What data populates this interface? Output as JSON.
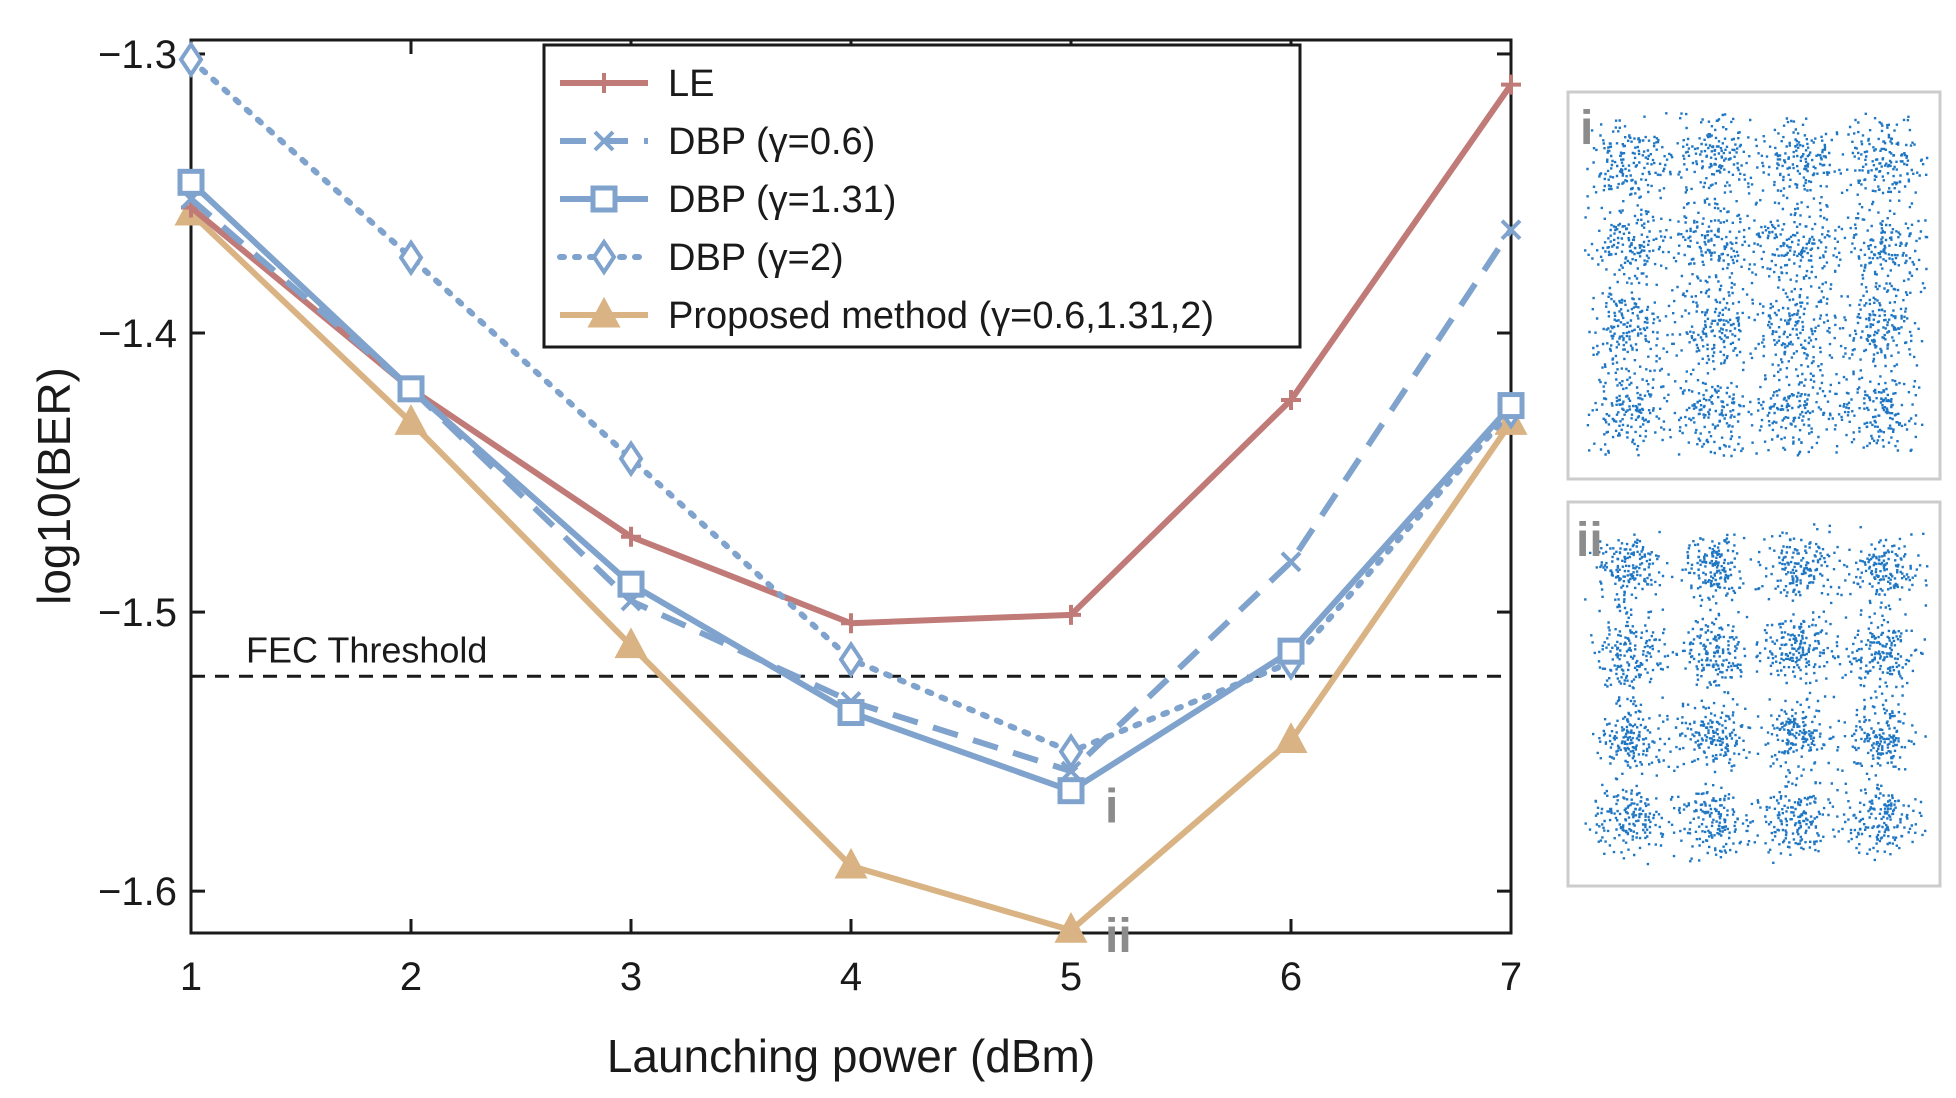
{
  "chart_data": {
    "type": "line",
    "xlabel": "Launching power (dBm)",
    "ylabel": "log10(BER)",
    "x": [
      1,
      2,
      3,
      4,
      5,
      6,
      7
    ],
    "xlim": [
      1,
      7
    ],
    "ylim": [
      -1.615,
      -1.295
    ],
    "yticks": [
      -1.3,
      -1.4,
      -1.5,
      -1.6
    ],
    "ytick_labels": [
      "−1.3",
      "−1.4",
      "−1.5",
      "−1.6"
    ],
    "xtick_labels": [
      "1",
      "2",
      "3",
      "4",
      "5",
      "6",
      "7"
    ],
    "series": [
      {
        "name": "LE",
        "color": "#c07b78",
        "dash": "solid",
        "marker": "plus",
        "values": [
          -1.355,
          -1.42,
          -1.473,
          -1.504,
          -1.501,
          -1.424,
          -1.311
        ]
      },
      {
        "name": "DBP (γ=0.6)",
        "color": "#7fa3cc",
        "dash": "dashed",
        "marker": "x",
        "values": [
          -1.352,
          -1.42,
          -1.496,
          -1.532,
          -1.557,
          -1.482,
          -1.363
        ]
      },
      {
        "name": "DBP (γ=1.31)",
        "color": "#7fa3cc",
        "dash": "solid",
        "marker": "square",
        "values": [
          -1.346,
          -1.42,
          -1.49,
          -1.536,
          -1.564,
          -1.514,
          -1.426
        ]
      },
      {
        "name": "DBP (γ=2)",
        "color": "#7fa3cc",
        "dash": "dotted",
        "marker": "diamond",
        "values": [
          -1.302,
          -1.373,
          -1.445,
          -1.517,
          -1.55,
          -1.518,
          -1.428
        ]
      },
      {
        "name": "Proposed method (γ=0.6,1.31,2)",
        "color": "#d9b383",
        "dash": "solid",
        "marker": "triangle",
        "values": [
          -1.357,
          -1.432,
          -1.512,
          -1.591,
          -1.614,
          -1.546,
          -1.432
        ]
      }
    ],
    "threshold": {
      "label": "FEC Threshold",
      "value": -1.523
    },
    "annotations": [
      {
        "text": "i",
        "x": 5,
        "series": "DBP (γ=1.31)"
      },
      {
        "text": "ii",
        "x": 5,
        "series": "Proposed method (γ=0.6,1.31,2)"
      }
    ]
  },
  "insets": [
    {
      "label": "i",
      "description_color": "#1f77c4"
    },
    {
      "label": "ii",
      "description_color": "#1f77c4"
    }
  ],
  "colors": {
    "axes": "#1a1a1a",
    "inset_border": "#cccccc",
    "constellation": "#1f77c4"
  }
}
